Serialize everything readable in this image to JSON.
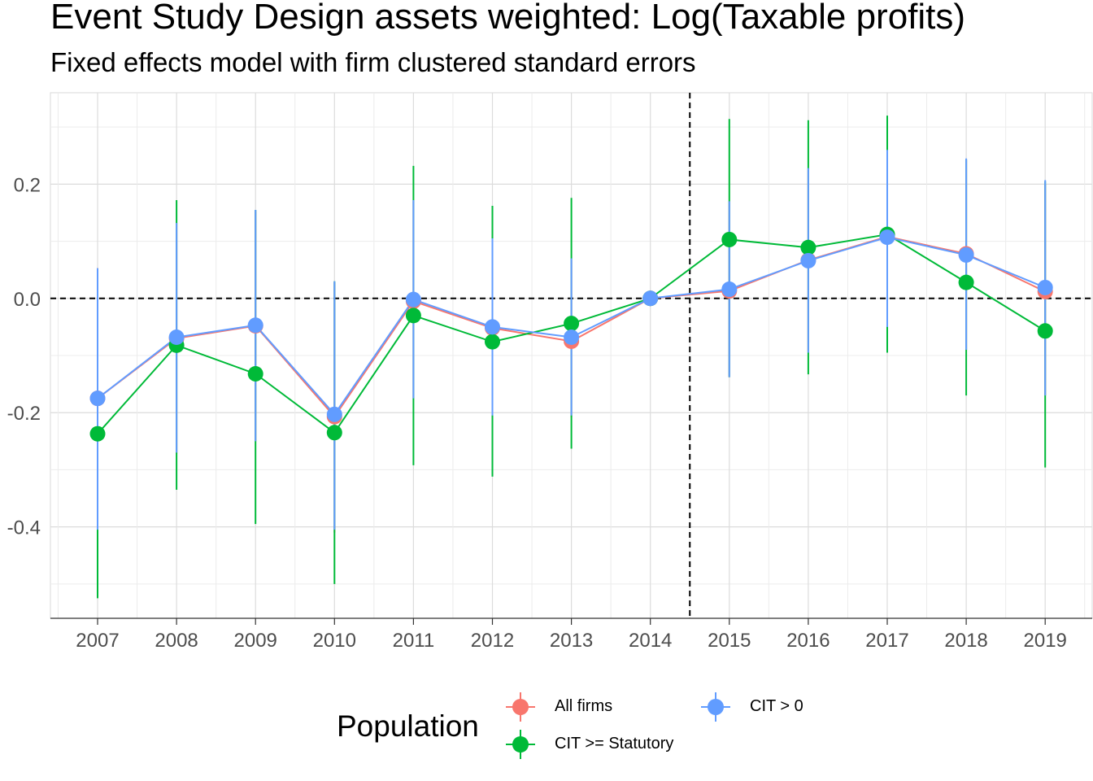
{
  "chart_data": {
    "type": "line",
    "title": "Event Study Design assets weighted: Log(Taxable profits)",
    "subtitle": "Fixed effects model with firm clustered standard errors",
    "xlabel": "",
    "ylabel": "",
    "categories": [
      "2007",
      "2008",
      "2009",
      "2010",
      "2011",
      "2012",
      "2013",
      "2014",
      "2015",
      "2016",
      "2017",
      "2018",
      "2019"
    ],
    "ylim": [
      -0.56,
      0.36
    ],
    "y_ticks": [
      0.2,
      0.0,
      -0.2,
      -0.4
    ],
    "y_tick_labels": [
      "0.2",
      "0.0",
      "-0.2",
      "-0.4"
    ],
    "reference_lines": {
      "horizontal_y": 0.0,
      "vertical_between": [
        "2014",
        "2015"
      ]
    },
    "grid": true,
    "legend": {
      "title": "Population",
      "position": "bottom"
    },
    "series": [
      {
        "name": "All firms",
        "color": "#F8766D",
        "values": [
          -0.175,
          -0.07,
          -0.048,
          -0.207,
          -0.005,
          -0.052,
          -0.075,
          0.0,
          0.013,
          0.067,
          0.108,
          0.078,
          0.012
        ],
        "lower": [
          -0.405,
          -0.272,
          -0.25,
          -0.41,
          -0.175,
          -0.207,
          -0.208,
          0.0,
          -0.138,
          -0.093,
          -0.05,
          -0.09,
          -0.17
        ],
        "upper": [
          0.053,
          0.132,
          0.153,
          0.028,
          0.17,
          0.102,
          0.068,
          0.0,
          0.17,
          0.225,
          0.258,
          0.243,
          0.2
        ]
      },
      {
        "name": "CIT >= Statutory",
        "color": "#00BA38",
        "values": [
          -0.237,
          -0.082,
          -0.132,
          -0.235,
          -0.03,
          -0.076,
          -0.044,
          0.0,
          0.103,
          0.089,
          0.112,
          0.028,
          -0.057
        ],
        "lower": [
          -0.525,
          -0.335,
          -0.395,
          -0.5,
          -0.292,
          -0.312,
          -0.263,
          0.0,
          -0.138,
          -0.133,
          -0.095,
          -0.17,
          -0.296
        ],
        "upper": [
          0.052,
          0.172,
          0.155,
          0.03,
          0.232,
          0.162,
          0.176,
          0.0,
          0.314,
          0.312,
          0.32,
          0.243,
          0.205
        ]
      },
      {
        "name": "CIT > 0",
        "color": "#619CFF",
        "values": [
          -0.175,
          -0.068,
          -0.047,
          -0.203,
          -0.002,
          -0.05,
          -0.068,
          0.0,
          0.016,
          0.066,
          0.107,
          0.076,
          0.019
        ],
        "lower": [
          -0.405,
          -0.27,
          -0.25,
          -0.405,
          -0.175,
          -0.205,
          -0.205,
          0.0,
          -0.138,
          -0.095,
          -0.05,
          -0.09,
          -0.17
        ],
        "upper": [
          0.053,
          0.132,
          0.155,
          0.03,
          0.172,
          0.105,
          0.07,
          0.0,
          0.17,
          0.228,
          0.26,
          0.245,
          0.207
        ]
      }
    ]
  }
}
